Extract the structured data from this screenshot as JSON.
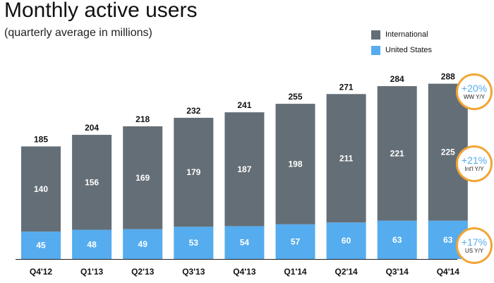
{
  "header": {
    "title": "Monthly active users",
    "subtitle": "(quarterly average in millions)"
  },
  "legend": [
    {
      "label": "International",
      "color": "#646e76"
    },
    {
      "label": "United States",
      "color": "#55acee"
    }
  ],
  "badges": [
    {
      "value": "+20%",
      "label": "WW Y/Y"
    },
    {
      "value": "+21%",
      "label": "Int'l Y/Y"
    },
    {
      "value": "+17%",
      "label": "US Y/Y"
    }
  ],
  "chart_data": {
    "type": "bar",
    "stacked": true,
    "categories": [
      "Q4'12",
      "Q1'13",
      "Q2'13",
      "Q3'13",
      "Q4'13",
      "Q1'14",
      "Q2'14",
      "Q3'14",
      "Q4'14"
    ],
    "series": [
      {
        "name": "United States",
        "color": "#55acee",
        "values": [
          45,
          48,
          49,
          53,
          54,
          57,
          60,
          63,
          63
        ]
      },
      {
        "name": "International",
        "color": "#646e76",
        "values": [
          140,
          156,
          169,
          179,
          187,
          198,
          211,
          221,
          225
        ]
      }
    ],
    "totals": [
      185,
      204,
      218,
      232,
      241,
      255,
      271,
      284,
      288
    ],
    "ylim": [
      0,
      300
    ],
    "grid": false,
    "legend_position": "top-right"
  }
}
